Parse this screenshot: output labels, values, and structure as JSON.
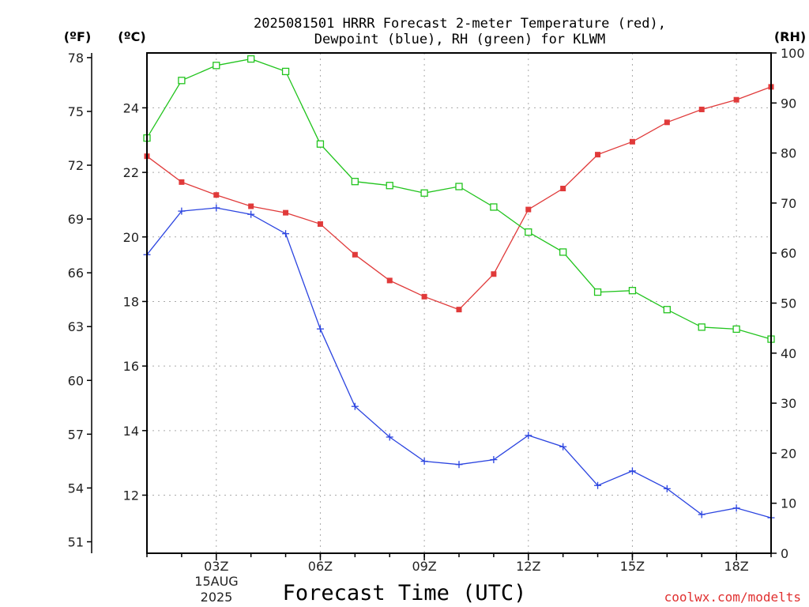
{
  "chart_data": {
    "type": "line",
    "title_line1": "2025081501 HRRR Forecast 2-meter Temperature (red),",
    "title_line2": "Dewpoint (blue), RH (green) for KLWM",
    "xlabel": "Forecast Time (UTC)",
    "credit": "coolwx.com/modelts",
    "unit_f": "(ºF)",
    "unit_c": "(ºC)",
    "unit_rh": "(RH)",
    "date_label_1": "15AUG",
    "date_label_2": "2025",
    "x_hours": [
      1,
      2,
      3,
      4,
      5,
      6,
      7,
      8,
      9,
      10,
      11,
      12,
      13,
      14,
      15,
      16,
      17,
      18,
      19
    ],
    "xlim": [
      1,
      19
    ],
    "x_ticks": [
      {
        "hour": 3,
        "label": "03Z"
      },
      {
        "hour": 6,
        "label": "06Z"
      },
      {
        "hour": 9,
        "label": "09Z"
      },
      {
        "hour": 12,
        "label": "12Z"
      },
      {
        "hour": 15,
        "label": "15Z"
      },
      {
        "hour": 18,
        "label": "18Z"
      }
    ],
    "ylim_c": [
      10.2,
      25.7
    ],
    "ylim_rh": [
      0,
      100
    ],
    "y_ticks_c": [
      "12",
      "14",
      "16",
      "18",
      "20",
      "22",
      "24"
    ],
    "y_ticks_f": [
      "51",
      "54",
      "57",
      "60",
      "63",
      "66",
      "69",
      "72",
      "75",
      "78"
    ],
    "y_ticks_rh": [
      "0",
      "10",
      "20",
      "30",
      "40",
      "50",
      "60",
      "70",
      "80",
      "90",
      "100"
    ],
    "series": [
      {
        "name": "Temperature",
        "axis": "c",
        "color": "#e03a3a",
        "marker": "filled-square",
        "values": [
          22.5,
          21.7,
          21.3,
          20.95,
          20.75,
          20.4,
          19.45,
          18.65,
          18.15,
          17.75,
          18.85,
          20.85,
          21.5,
          22.55,
          22.95,
          23.55,
          23.95,
          24.25,
          24.65
        ]
      },
      {
        "name": "Dewpoint",
        "axis": "c",
        "color": "#2b44e0",
        "marker": "plus",
        "values": [
          19.45,
          20.8,
          20.9,
          20.7,
          20.1,
          17.15,
          14.75,
          13.8,
          13.05,
          12.95,
          13.1,
          13.85,
          13.5,
          12.3,
          12.75,
          12.2,
          11.4,
          11.6,
          11.3
        ]
      },
      {
        "name": "RH",
        "axis": "rh",
        "color": "#22c41e",
        "marker": "open-square",
        "values": [
          83,
          94.5,
          97.5,
          98.8,
          96.3,
          81.8,
          74.3,
          73.5,
          72,
          73.3,
          69.2,
          64.2,
          60.2,
          52.2,
          52.5,
          48.7,
          45.2,
          44.8,
          42.8
        ]
      }
    ]
  }
}
